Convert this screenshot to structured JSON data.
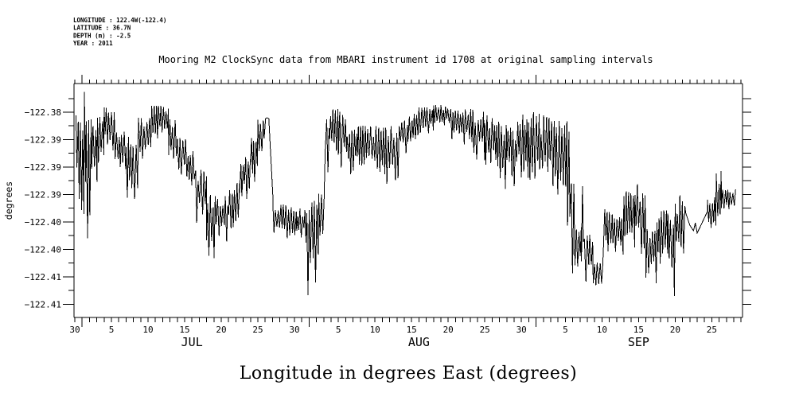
{
  "header": {
    "meta_lines": [
      "LONGITUDE : 122.4W(-122.4)",
      "LATITUDE : 36.7N",
      "DEPTH (m) : -2.5",
      "YEAR : 2011"
    ]
  },
  "chart_data": {
    "type": "line",
    "title": "Mooring M2 ClockSync data from MBARI instrument id 1708 at original sampling intervals",
    "xlabel": "Longitude in degrees East (degrees)",
    "ylabel": "degrees",
    "legend": "none",
    "grid": "off",
    "line_color": "#000000",
    "x_axis": {
      "day0_label_date": "JUN 30",
      "days_shown": 91,
      "minor_tick_every_days": 1,
      "month_tick_days": [
        1,
        32,
        63
      ],
      "day_tick_labels": [
        {
          "day": 0,
          "label": "30"
        },
        {
          "day": 5,
          "label": "5"
        },
        {
          "day": 10,
          "label": "10"
        },
        {
          "day": 15,
          "label": "15"
        },
        {
          "day": 20,
          "label": "20"
        },
        {
          "day": 25,
          "label": "25"
        },
        {
          "day": 30,
          "label": "30"
        },
        {
          "day": 36,
          "label": "5"
        },
        {
          "day": 41,
          "label": "10"
        },
        {
          "day": 46,
          "label": "15"
        },
        {
          "day": 51,
          "label": "20"
        },
        {
          "day": 56,
          "label": "25"
        },
        {
          "day": 61,
          "label": "30"
        },
        {
          "day": 67,
          "label": "5"
        },
        {
          "day": 72,
          "label": "10"
        },
        {
          "day": 77,
          "label": "15"
        },
        {
          "day": 82,
          "label": "20"
        },
        {
          "day": 87,
          "label": "25"
        }
      ],
      "month_labels": [
        {
          "day": 16,
          "label": "JUL"
        },
        {
          "day": 47,
          "label": "AUG"
        },
        {
          "day": 77,
          "label": "SEP"
        }
      ]
    },
    "y_axis": {
      "ylim": [
        -122.41741,
        -122.37478
      ],
      "major_ticks": [
        {
          "value": -122.38,
          "label": "−122.38"
        },
        {
          "value": -122.385,
          "label": "−122.39"
        },
        {
          "value": -122.39,
          "label": "−122.39"
        },
        {
          "value": -122.395,
          "label": "−122.39"
        },
        {
          "value": -122.4,
          "label": "−122.40"
        },
        {
          "value": -122.405,
          "label": "−122.40"
        },
        {
          "value": -122.41,
          "label": "−122.41"
        },
        {
          "value": -122.415,
          "label": "−122.41"
        }
      ],
      "minor_tick_values": [
        -122.3775,
        -122.3825,
        -122.3875,
        -122.3925,
        -122.3975,
        -122.4025,
        -122.4075,
        -122.4125
      ]
    },
    "series": {
      "name": "Longitude",
      "unit": "degrees East",
      "note": "Dense tidal oscillation; values are envelope bands [day_start, day_end, high, low] (days after Jun 30, 2011) and smooth line segments [[day, value], ...] read from the plot.",
      "segments": [
        {
          "band": [
            0.15,
            0.6,
            -122.3806,
            -122.3994
          ]
        },
        {
          "band": [
            0.6,
            1.3,
            -122.3803,
            -122.4038
          ]
        },
        {
          "band": [
            1.3,
            1.55,
            -122.3759,
            -122.399
          ]
        },
        {
          "band": [
            1.55,
            2.3,
            -122.3813,
            -122.409
          ]
        },
        {
          "band": [
            2.3,
            3.1,
            -122.381,
            -122.3958
          ]
        },
        {
          "band": [
            3.1,
            4.0,
            -122.3806,
            -122.3907
          ]
        },
        {
          "band": [
            4.0,
            5.5,
            -122.3791,
            -122.3886
          ]
        },
        {
          "band": [
            5.5,
            7.0,
            -122.3828,
            -122.3941
          ]
        },
        {
          "band": [
            7.0,
            8.7,
            -122.3845,
            -122.3999
          ]
        },
        {
          "band": [
            8.7,
            10.5,
            -122.381,
            -122.3907
          ]
        },
        {
          "band": [
            10.5,
            12.8,
            -122.3788,
            -122.3864
          ]
        },
        {
          "band": [
            12.8,
            14.0,
            -122.3813,
            -122.3915
          ]
        },
        {
          "band": [
            14.0,
            15.3,
            -122.3845,
            -122.3939
          ]
        },
        {
          "band": [
            15.3,
            16.5,
            -122.3871,
            -122.3961
          ]
        },
        {
          "band": [
            16.5,
            18.0,
            -122.3904,
            -122.4016
          ]
        },
        {
          "band": [
            18.0,
            19.3,
            -122.3944,
            -122.4089
          ]
        },
        {
          "band": [
            19.3,
            21.0,
            -122.3952,
            -122.4052
          ]
        },
        {
          "band": [
            21.0,
            22.5,
            -122.3929,
            -122.4023
          ]
        },
        {
          "band": [
            22.5,
            24.0,
            -122.388,
            -122.3973
          ]
        },
        {
          "band": [
            24.0,
            25.0,
            -122.3835,
            -122.3936
          ]
        },
        {
          "band": [
            25.0,
            26.0,
            -122.3813,
            -122.388
          ]
        },
        {
          "line": [
            [
              26.05,
              -122.3812
            ],
            [
              26.25,
              -122.381
            ],
            [
              26.5,
              -122.3812
            ],
            [
              27.05,
              -122.3954
            ]
          ]
        },
        {
          "band": [
            27.05,
            29.0,
            -122.3967,
            -122.4042
          ]
        },
        {
          "band": [
            29.0,
            30.3,
            -122.3973,
            -122.4048
          ]
        },
        {
          "band": [
            30.3,
            31.7,
            -122.3975,
            -122.4045
          ]
        },
        {
          "band": [
            31.7,
            33.3,
            -122.3961,
            -122.4141
          ]
        },
        {
          "band": [
            33.3,
            34.2,
            -122.3939,
            -122.4074
          ]
        },
        {
          "band": [
            34.2,
            34.8,
            -122.3799,
            -122.3936
          ]
        },
        {
          "band": [
            34.8,
            36.0,
            -122.3794,
            -122.39
          ]
        },
        {
          "band": [
            36.0,
            37.2,
            -122.3799,
            -122.3904
          ]
        },
        {
          "band": [
            37.2,
            38.6,
            -122.3832,
            -122.3925
          ]
        },
        {
          "band": [
            38.6,
            40.0,
            -122.3825,
            -122.3929
          ]
        },
        {
          "band": [
            40.0,
            41.5,
            -122.3823,
            -122.3936
          ]
        },
        {
          "band": [
            41.5,
            43.0,
            -122.3828,
            -122.3958
          ]
        },
        {
          "band": [
            43.0,
            44.5,
            -122.3817,
            -122.3968
          ]
        },
        {
          "band": [
            44.5,
            45.5,
            -122.3809,
            -122.3886
          ]
        },
        {
          "band": [
            45.5,
            47.0,
            -122.3797,
            -122.388
          ]
        },
        {
          "band": [
            47.0,
            49.0,
            -122.3791,
            -122.3845
          ]
        },
        {
          "band": [
            49.0,
            51.5,
            -122.3787,
            -122.3836
          ]
        },
        {
          "band": [
            51.5,
            53.0,
            -122.379,
            -122.3857
          ]
        },
        {
          "band": [
            53.0,
            54.5,
            -122.3794,
            -122.3871
          ]
        },
        {
          "band": [
            54.5,
            56.0,
            -122.3799,
            -122.39
          ]
        },
        {
          "band": [
            56.0,
            57.5,
            -122.3804,
            -122.3923
          ]
        },
        {
          "band": [
            57.5,
            59.0,
            -122.3817,
            -122.3944
          ]
        },
        {
          "band": [
            59.0,
            60.5,
            -122.3828,
            -122.3939
          ]
        },
        {
          "band": [
            60.5,
            62.0,
            -122.3804,
            -122.3939
          ]
        },
        {
          "band": [
            62.0,
            63.5,
            -122.3799,
            -122.3967
          ]
        },
        {
          "band": [
            63.5,
            65.3,
            -122.3806,
            -122.3965
          ]
        },
        {
          "band": [
            65.3,
            67.3,
            -122.3816,
            -122.3987
          ]
        },
        {
          "band": [
            67.3,
            67.8,
            -122.3828,
            -122.4118
          ]
        },
        {
          "band": [
            67.8,
            68.3,
            -122.3929,
            -122.4132
          ]
        },
        {
          "band": [
            68.3,
            69.2,
            -122.4009,
            -122.411
          ]
        },
        {
          "band": [
            69.2,
            69.6,
            -122.3929,
            -122.4103
          ]
        },
        {
          "band": [
            69.6,
            70.8,
            -122.4023,
            -122.412
          ]
        },
        {
          "band": [
            70.8,
            72.2,
            -122.4074,
            -122.4147
          ]
        },
        {
          "band": [
            72.2,
            73.5,
            -122.3974,
            -122.4089
          ]
        },
        {
          "band": [
            73.5,
            75.0,
            -122.3989,
            -122.4078
          ]
        },
        {
          "band": [
            75.0,
            76.5,
            -122.3944,
            -122.4074
          ]
        },
        {
          "band": [
            76.5,
            78.0,
            -122.3929,
            -122.4083
          ]
        },
        {
          "band": [
            78.0,
            79.5,
            -122.4013,
            -122.4125
          ]
        },
        {
          "band": [
            79.5,
            81.0,
            -122.3978,
            -122.4103
          ]
        },
        {
          "band": [
            81.0,
            82.0,
            -122.3984,
            -122.4147
          ]
        },
        {
          "band": [
            82.0,
            83.4,
            -122.3951,
            -122.4118
          ]
        },
        {
          "line": [
            [
              83.45,
              -122.3984
            ],
            [
              84.0,
              -122.4006
            ],
            [
              84.5,
              -122.4016
            ],
            [
              84.75,
              -122.4002
            ],
            [
              85.0,
              -122.402
            ],
            [
              85.3,
              -122.4012
            ],
            [
              86.4,
              -122.3981
            ]
          ]
        },
        {
          "band": [
            86.4,
            87.6,
            -122.3951,
            -122.4023
          ]
        },
        {
          "band": [
            87.6,
            88.3,
            -122.3907,
            -122.4031
          ]
        },
        {
          "band": [
            88.3,
            90.3,
            -122.3941,
            -122.398
          ]
        }
      ]
    }
  },
  "colors": {
    "foreground": "#000000",
    "background": "#ffffff"
  }
}
